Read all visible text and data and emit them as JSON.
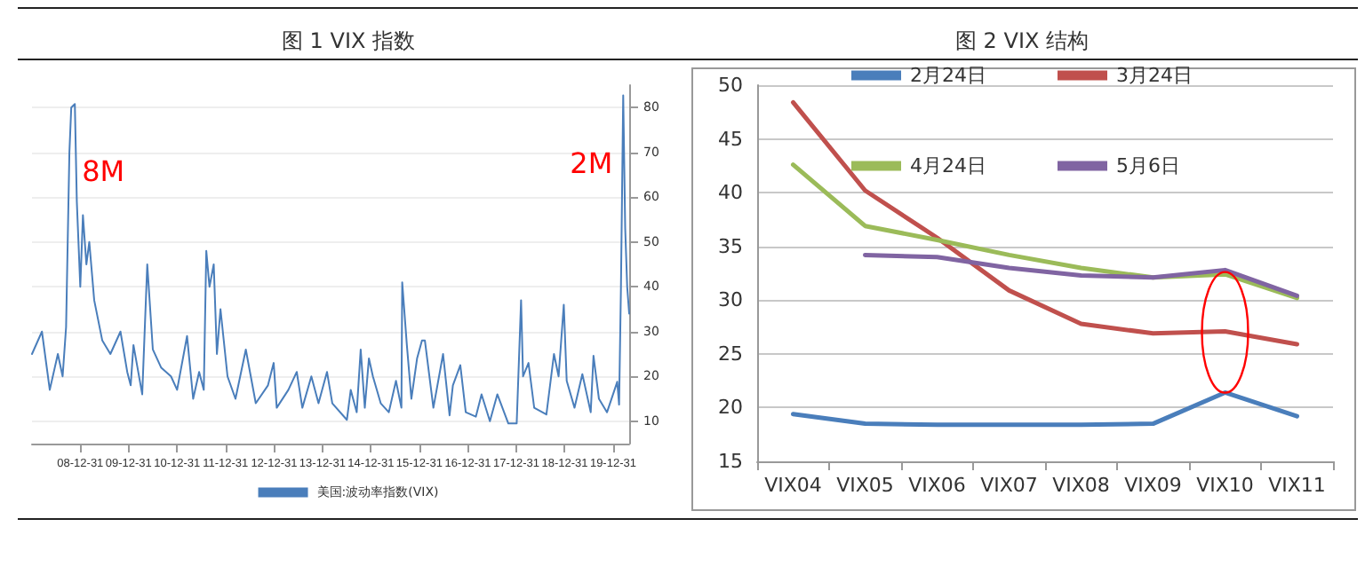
{
  "chart_data": [
    {
      "type": "line",
      "title": "图 1 VIX 指数",
      "x": [
        "2008-01-02",
        "2008-03-17",
        "2008-05-15",
        "2008-07-15",
        "2008-08-20",
        "2008-09-15",
        "2008-10-10",
        "2008-10-24",
        "2008-11-20",
        "2008-12-05",
        "2008-12-31",
        "2009-01-20",
        "2009-02-15",
        "2009-03-09",
        "2009-04-15",
        "2009-06-15",
        "2009-08-15",
        "2009-10-30",
        "2009-12-20",
        "2010-01-15",
        "2010-02-05",
        "2010-04-12",
        "2010-05-20",
        "2010-07-01",
        "2010-09-01",
        "2010-11-15",
        "2010-12-31",
        "2011-03-16",
        "2011-05-01",
        "2011-06-15",
        "2011-07-20",
        "2011-08-08",
        "2011-09-01",
        "2011-10-03",
        "2011-10-27",
        "2011-11-23",
        "2012-01-15",
        "2012-03-15",
        "2012-06-01",
        "2012-08-15",
        "2012-11-15",
        "2012-12-28",
        "2013-01-20",
        "2013-04-18",
        "2013-06-20",
        "2013-08-01",
        "2013-10-08",
        "2013-12-01",
        "2014-02-03",
        "2014-03-15",
        "2014-07-03",
        "2014-08-01",
        "2014-09-15",
        "2014-10-15",
        "2014-11-15",
        "2014-12-16",
        "2015-01-15",
        "2015-03-15",
        "2015-05-15",
        "2015-07-08",
        "2015-08-18",
        "2015-08-24",
        "2015-09-28",
        "2015-11-01",
        "2015-12-14",
        "2016-01-20",
        "2016-02-11",
        "2016-04-15",
        "2016-06-27",
        "2016-08-15",
        "2016-09-09",
        "2016-11-04",
        "2016-12-15",
        "2017-03-01",
        "2017-04-13",
        "2017-06-15",
        "2017-08-10",
        "2017-11-01",
        "2018-01-03",
        "2018-02-05",
        "2018-02-20",
        "2018-04-02",
        "2018-05-15",
        "2018-08-15",
        "2018-10-11",
        "2018-11-15",
        "2018-12-24",
        "2019-01-15",
        "2019-03-15",
        "2019-05-13",
        "2019-07-15",
        "2019-08-05",
        "2019-09-15",
        "2019-11-15",
        "2020-01-31",
        "2020-02-14",
        "2020-02-28",
        "2020-03-16",
        "2020-03-31",
        "2020-04-15",
        "2020-04-30"
      ],
      "series": [
        {
          "name": "美国:波动率指数(VIX)",
          "color": "#4a7ebb",
          "values": [
            25,
            30,
            17,
            25,
            20,
            31,
            70,
            80,
            80.8,
            59,
            40,
            56,
            45,
            50,
            37,
            28,
            25,
            30,
            21,
            18,
            27,
            16,
            45,
            26,
            22,
            20,
            17,
            29,
            15,
            21,
            17,
            48,
            40,
            45,
            25,
            35,
            20,
            15,
            26,
            14,
            18,
            23,
            13,
            17,
            21,
            13,
            20,
            14,
            21,
            14,
            10.3,
            17,
            12,
            26,
            13,
            24,
            20,
            14,
            12,
            19,
            13,
            41,
            27,
            15,
            24,
            28,
            28,
            13,
            25,
            11.3,
            18,
            22.5,
            12,
            11,
            16,
            10,
            16,
            9.5,
            9.5,
            37,
            20,
            23,
            13,
            11.5,
            25,
            20,
            36,
            19,
            13,
            20.5,
            12,
            24.6,
            15,
            12,
            18.8,
            13.7,
            40,
            82.7,
            53,
            40,
            34
          ]
        }
      ],
      "xlim": [
        "2008-01-02",
        "2020-04-30"
      ],
      "xticks": [
        {
          "value": "2008-12-31",
          "label": "08-12-31"
        },
        {
          "value": "2009-12-31",
          "label": "09-12-31"
        },
        {
          "value": "2010-12-31",
          "label": "10-12-31"
        },
        {
          "value": "2011-12-31",
          "label": "11-12-31"
        },
        {
          "value": "2012-12-31",
          "label": "12-12-31"
        },
        {
          "value": "2013-12-31",
          "label": "13-12-31"
        },
        {
          "value": "2014-12-31",
          "label": "14-12-31"
        },
        {
          "value": "2015-12-31",
          "label": "15-12-31"
        },
        {
          "value": "2016-12-31",
          "label": "16-12-31"
        },
        {
          "value": "2017-12-31",
          "label": "17-12-31"
        },
        {
          "value": "2018-12-31",
          "label": "18-12-31"
        },
        {
          "value": "2019-12-31",
          "label": "19-12-31"
        }
      ],
      "ylim": [
        5,
        85
      ],
      "yticks": [
        10,
        20,
        30,
        40,
        50,
        60,
        70,
        80
      ],
      "annotations": [
        {
          "text": "8M",
          "x": "2008-11-20",
          "y": 80.8
        },
        {
          "text": "2M",
          "x": "2020-03-16",
          "y": 82.7
        }
      ],
      "grid": "y",
      "legend": "bottom",
      "marker": "none",
      "line_style": "solid"
    },
    {
      "type": "line",
      "title": "图 2 VIX 结构",
      "categories": [
        "VIX04",
        "VIX05",
        "VIX06",
        "VIX07",
        "VIX08",
        "VIX09",
        "VIX10",
        "VIX11"
      ],
      "series": [
        {
          "name": "2月24日",
          "color": "#4a7ebb",
          "values": [
            19.4,
            18.5,
            18.4,
            18.4,
            18.4,
            18.5,
            21.4,
            19.2
          ]
        },
        {
          "name": "3月24日",
          "color": "#c0504d",
          "values": [
            48.4,
            40.2,
            35.8,
            30.9,
            27.8,
            26.9,
            27.1,
            25.9
          ]
        },
        {
          "name": "4月24日",
          "color": "#9bbb59",
          "values": [
            42.6,
            36.9,
            35.6,
            34.2,
            33.0,
            32.1,
            32.4,
            30.2
          ]
        },
        {
          "name": "5月6日",
          "color": "#8064a2",
          "values": [
            null,
            34.2,
            34.0,
            33.0,
            32.3,
            32.1,
            32.8,
            30.4
          ]
        }
      ],
      "ylim": [
        15,
        50
      ],
      "yticks": [
        15,
        20,
        25,
        30,
        35,
        40,
        45,
        50
      ],
      "grid": "y",
      "legend": "top",
      "marker": "none",
      "line_style": "solid"
    }
  ]
}
